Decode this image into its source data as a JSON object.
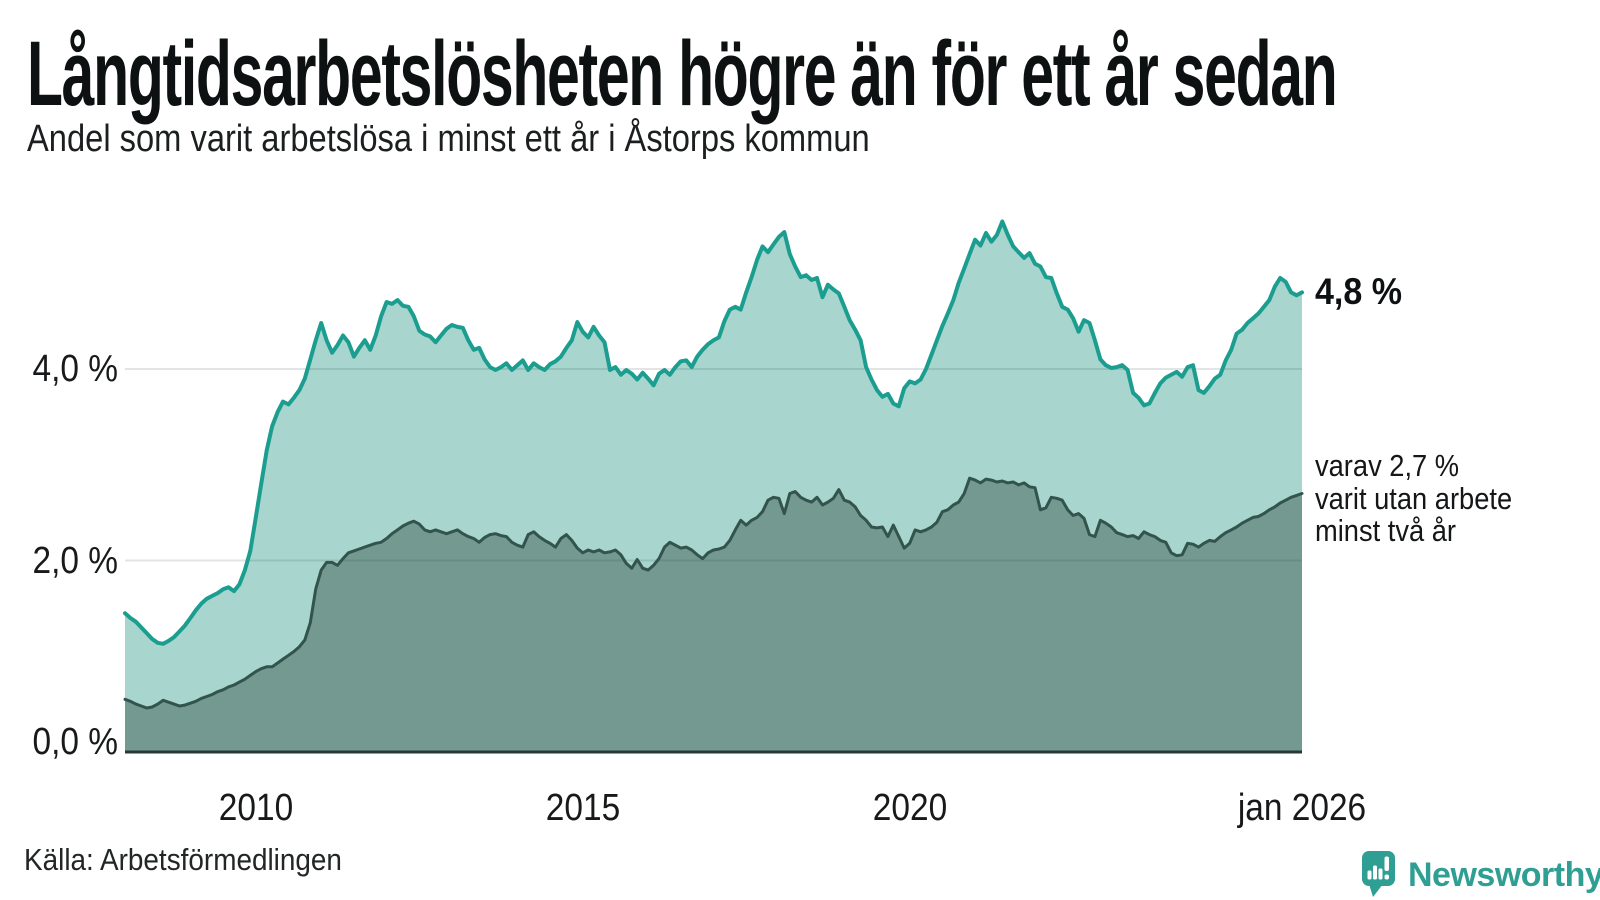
{
  "header": {
    "title": "Långtidsarbetslösheten högre än för ett år sedan",
    "subtitle": "Andel som varit arbetslösa i minst ett år i Åstorps kommun"
  },
  "annotations": {
    "latest_total": "4,8 %",
    "subset_line1": "varav 2,7 %",
    "subset_line2": "varit utan arbete",
    "subset_line3": "minst två år"
  },
  "y_axis": {
    "ticks": [
      {
        "label": "4,0 %",
        "value": 4.0
      },
      {
        "label": "2,0 %",
        "value": 2.0
      },
      {
        "label": "0,0 %",
        "value": 0.0
      }
    ]
  },
  "x_axis": {
    "ticks": [
      {
        "label": "2010",
        "year": 2010
      },
      {
        "label": "2015",
        "year": 2015
      },
      {
        "label": "2020",
        "year": 2020
      },
      {
        "label": "jan 2026",
        "year": 2026
      }
    ]
  },
  "footer": {
    "source": "Källa: Arbetsförmedlingen",
    "brand_name": "Newsworthy"
  },
  "colors": {
    "total_line": "#1b9e8f",
    "total_fill": "#a8d5cd",
    "subset_line": "#32544d",
    "subset_fill": "#739990",
    "baseline": "#2b3936",
    "gridline": "rgba(45,70,70,0.14)",
    "brand": "#2f9e93"
  },
  "chart_data": {
    "type": "area",
    "unit": "%",
    "title": "Långtidsarbetslösheten högre än för ett år sedan",
    "subtitle": "Andel som varit arbetslösa i minst ett år i Åstorps kommun",
    "frequency": "monthly",
    "x_start": "2008-01",
    "x_end": "2026-01",
    "ylim": [
      0,
      5.9
    ],
    "y_gridlines": [
      2.0,
      4.0
    ],
    "legend_position": "right-annotations",
    "last_values": {
      "total_at_least_one_year": 4.8,
      "subset_at_least_two_years": 2.7
    },
    "series": [
      {
        "name": "Andel arbetslösa minst ett år",
        "role": "total",
        "values": [
          1.45,
          1.4,
          1.36,
          1.3,
          1.24,
          1.18,
          1.14,
          1.13,
          1.16,
          1.2,
          1.26,
          1.32,
          1.4,
          1.48,
          1.55,
          1.6,
          1.63,
          1.66,
          1.7,
          1.72,
          1.68,
          1.75,
          1.9,
          2.1,
          2.45,
          2.8,
          3.15,
          3.4,
          3.55,
          3.66,
          3.63,
          3.7,
          3.78,
          3.9,
          4.1,
          4.3,
          4.48,
          4.3,
          4.17,
          4.25,
          4.35,
          4.28,
          4.13,
          4.22,
          4.3,
          4.2,
          4.35,
          4.55,
          4.7,
          4.68,
          4.72,
          4.66,
          4.65,
          4.55,
          4.4,
          4.36,
          4.34,
          4.28,
          4.35,
          4.42,
          4.46,
          4.44,
          4.43,
          4.3,
          4.2,
          4.22,
          4.1,
          4.02,
          3.99,
          4.02,
          4.06,
          3.99,
          4.04,
          4.09,
          3.99,
          4.06,
          4.02,
          3.99,
          4.05,
          4.08,
          4.13,
          4.22,
          4.3,
          4.49,
          4.39,
          4.33,
          4.44,
          4.35,
          4.28,
          3.99,
          4.02,
          3.94,
          3.99,
          3.95,
          3.89,
          3.96,
          3.9,
          3.83,
          3.95,
          3.99,
          3.94,
          4.02,
          4.08,
          4.09,
          4.02,
          4.13,
          4.2,
          4.26,
          4.3,
          4.33,
          4.5,
          4.62,
          4.65,
          4.62,
          4.8,
          4.96,
          5.14,
          5.28,
          5.22,
          5.3,
          5.38,
          5.43,
          5.2,
          5.07,
          4.96,
          4.98,
          4.93,
          4.95,
          4.75,
          4.88,
          4.83,
          4.79,
          4.65,
          4.51,
          4.41,
          4.3,
          4.02,
          3.89,
          3.78,
          3.71,
          3.74,
          3.64,
          3.61,
          3.8,
          3.87,
          3.85,
          3.89,
          4.0,
          4.15,
          4.3,
          4.45,
          4.58,
          4.72,
          4.9,
          5.05,
          5.2,
          5.35,
          5.29,
          5.42,
          5.33,
          5.4,
          5.54,
          5.4,
          5.28,
          5.22,
          5.16,
          5.21,
          5.1,
          5.07,
          4.96,
          4.95,
          4.79,
          4.65,
          4.62,
          4.53,
          4.39,
          4.51,
          4.48,
          4.3,
          4.1,
          4.04,
          4.01,
          4.02,
          4.04,
          3.99,
          3.75,
          3.7,
          3.62,
          3.64,
          3.75,
          3.85,
          3.91,
          3.94,
          3.97,
          3.92,
          4.02,
          4.04,
          3.78,
          3.75,
          3.82,
          3.9,
          3.94,
          4.09,
          4.2,
          4.37,
          4.41,
          4.48,
          4.53,
          4.58,
          4.65,
          4.72,
          4.86,
          4.95,
          4.91,
          4.8,
          4.77,
          4.8
        ]
      },
      {
        "name": "varav minst två år utan arbete",
        "role": "subset",
        "values": [
          0.55,
          0.53,
          0.5,
          0.48,
          0.46,
          0.47,
          0.5,
          0.54,
          0.52,
          0.5,
          0.48,
          0.49,
          0.51,
          0.53,
          0.56,
          0.58,
          0.6,
          0.63,
          0.65,
          0.68,
          0.7,
          0.73,
          0.76,
          0.8,
          0.84,
          0.87,
          0.89,
          0.89,
          0.93,
          0.97,
          1.01,
          1.05,
          1.1,
          1.17,
          1.35,
          1.7,
          1.9,
          1.98,
          1.98,
          1.95,
          2.02,
          2.08,
          2.1,
          2.12,
          2.14,
          2.16,
          2.18,
          2.19,
          2.23,
          2.28,
          2.32,
          2.36,
          2.39,
          2.41,
          2.38,
          2.32,
          2.3,
          2.32,
          2.3,
          2.28,
          2.3,
          2.32,
          2.28,
          2.25,
          2.23,
          2.19,
          2.24,
          2.27,
          2.28,
          2.26,
          2.25,
          2.19,
          2.16,
          2.14,
          2.27,
          2.3,
          2.25,
          2.21,
          2.18,
          2.14,
          2.23,
          2.27,
          2.21,
          2.13,
          2.08,
          2.11,
          2.09,
          2.11,
          2.08,
          2.09,
          2.11,
          2.06,
          1.97,
          1.92,
          2.01,
          1.92,
          1.9,
          1.95,
          2.02,
          2.14,
          2.19,
          2.16,
          2.13,
          2.14,
          2.11,
          2.06,
          2.02,
          2.08,
          2.11,
          2.12,
          2.14,
          2.21,
          2.32,
          2.42,
          2.37,
          2.42,
          2.45,
          2.51,
          2.63,
          2.66,
          2.65,
          2.49,
          2.7,
          2.72,
          2.66,
          2.63,
          2.61,
          2.66,
          2.58,
          2.61,
          2.65,
          2.74,
          2.63,
          2.61,
          2.56,
          2.47,
          2.42,
          2.35,
          2.34,
          2.35,
          2.25,
          2.37,
          2.25,
          2.13,
          2.18,
          2.32,
          2.3,
          2.32,
          2.35,
          2.4,
          2.51,
          2.53,
          2.58,
          2.61,
          2.7,
          2.86,
          2.84,
          2.81,
          2.85,
          2.84,
          2.82,
          2.83,
          2.81,
          2.82,
          2.79,
          2.81,
          2.77,
          2.76,
          2.53,
          2.55,
          2.66,
          2.65,
          2.63,
          2.53,
          2.47,
          2.49,
          2.44,
          2.27,
          2.25,
          2.42,
          2.39,
          2.35,
          2.29,
          2.27,
          2.25,
          2.26,
          2.23,
          2.3,
          2.27,
          2.25,
          2.21,
          2.19,
          2.08,
          2.05,
          2.06,
          2.18,
          2.17,
          2.14,
          2.18,
          2.21,
          2.2,
          2.25,
          2.29,
          2.32,
          2.35,
          2.39,
          2.42,
          2.45,
          2.46,
          2.49,
          2.53,
          2.56,
          2.6,
          2.63,
          2.66,
          2.68,
          2.7
        ]
      }
    ]
  }
}
